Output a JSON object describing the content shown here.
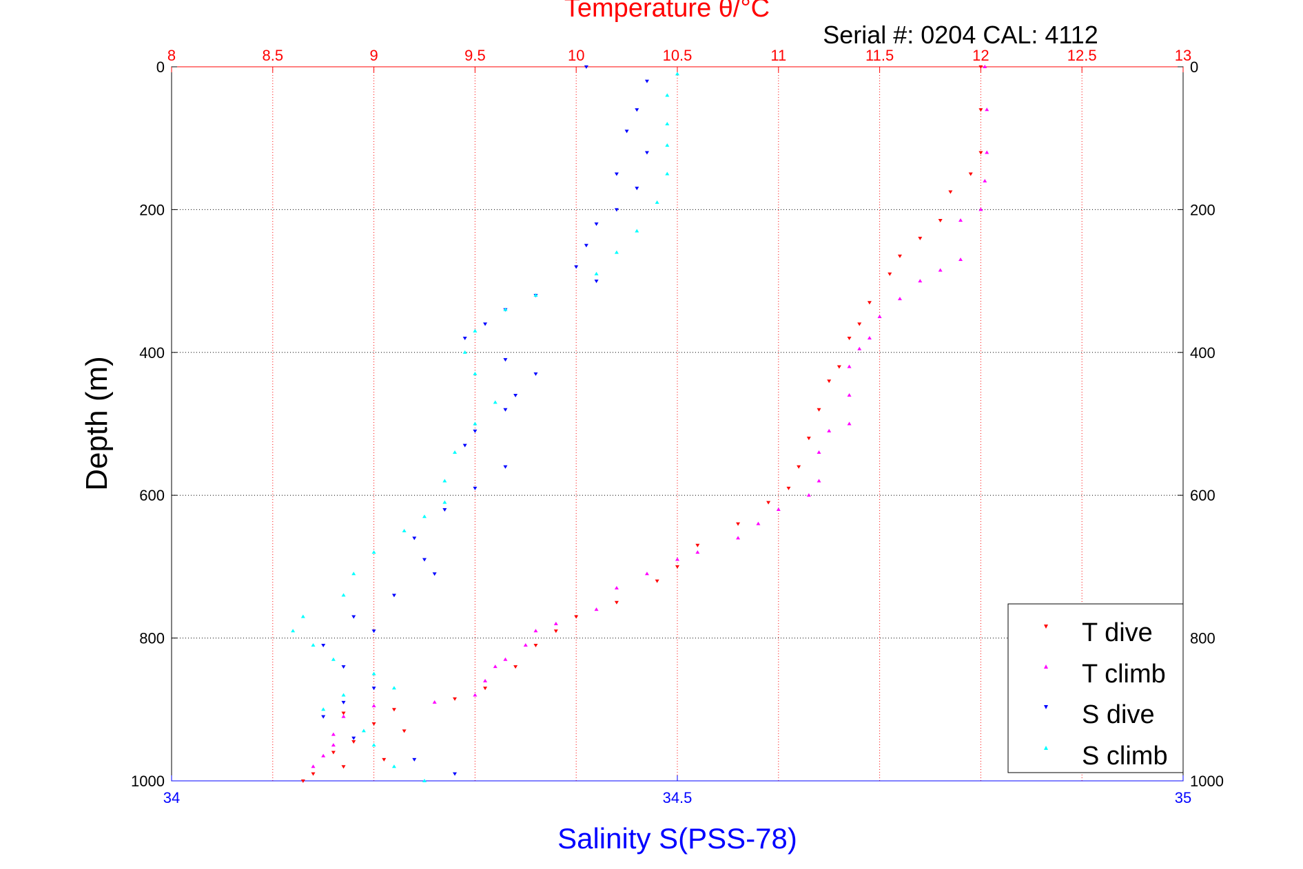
{
  "chart_data": {
    "type": "scatter",
    "title": "Temperature θ/°C",
    "subtitle": "Serial #: 0204  CAL: 4112",
    "xlabel_bottom": "Salinity S(PSS-78)",
    "ylabel": "Depth (m)",
    "y_reversed": true,
    "ylim": [
      0,
      1000
    ],
    "y_ticks": [
      "0",
      "200",
      "400",
      "600",
      "800",
      "1000"
    ],
    "x_top": {
      "label": "Temperature θ/°C",
      "lim": [
        8,
        13
      ],
      "ticks": [
        "8",
        "8.5",
        "9",
        "9.5",
        "10",
        "10.5",
        "11",
        "11.5",
        "12",
        "12.5",
        "13"
      ]
    },
    "x_bottom": {
      "label": "Salinity S(PSS-78)",
      "lim": [
        34,
        35
      ],
      "ticks": [
        "34",
        "34.5",
        "35"
      ]
    },
    "grid": true,
    "legend_position": "bottom-right",
    "series": [
      {
        "name": "T dive",
        "axis": "temperature",
        "color": "#ff0000",
        "marker": "triangle-down",
        "points": [
          [
            12.0,
            0
          ],
          [
            12.0,
            60
          ],
          [
            12.0,
            120
          ],
          [
            11.95,
            150
          ],
          [
            11.85,
            175
          ],
          [
            11.8,
            215
          ],
          [
            11.7,
            240
          ],
          [
            11.6,
            265
          ],
          [
            11.55,
            290
          ],
          [
            11.45,
            330
          ],
          [
            11.4,
            360
          ],
          [
            11.35,
            380
          ],
          [
            11.3,
            420
          ],
          [
            11.25,
            440
          ],
          [
            11.2,
            480
          ],
          [
            11.15,
            520
          ],
          [
            11.1,
            560
          ],
          [
            11.05,
            590
          ],
          [
            10.95,
            610
          ],
          [
            10.8,
            640
          ],
          [
            10.6,
            670
          ],
          [
            10.5,
            700
          ],
          [
            10.4,
            720
          ],
          [
            10.2,
            750
          ],
          [
            10.0,
            770
          ],
          [
            9.9,
            790
          ],
          [
            9.8,
            810
          ],
          [
            9.7,
            840
          ],
          [
            9.55,
            870
          ],
          [
            9.4,
            885
          ],
          [
            9.1,
            900
          ],
          [
            8.85,
            905
          ],
          [
            9.0,
            920
          ],
          [
            9.15,
            930
          ],
          [
            8.9,
            945
          ],
          [
            8.8,
            960
          ],
          [
            9.05,
            970
          ],
          [
            8.85,
            980
          ],
          [
            8.7,
            990
          ],
          [
            8.65,
            1000
          ]
        ]
      },
      {
        "name": "T climb",
        "axis": "temperature",
        "color": "#ff00ff",
        "marker": "triangle-up",
        "points": [
          [
            12.02,
            0
          ],
          [
            12.03,
            60
          ],
          [
            12.03,
            120
          ],
          [
            12.02,
            160
          ],
          [
            12.0,
            200
          ],
          [
            11.9,
            215
          ],
          [
            11.9,
            270
          ],
          [
            11.8,
            285
          ],
          [
            11.7,
            300
          ],
          [
            11.6,
            325
          ],
          [
            11.5,
            350
          ],
          [
            11.45,
            380
          ],
          [
            11.4,
            395
          ],
          [
            11.35,
            420
          ],
          [
            11.35,
            460
          ],
          [
            11.35,
            500
          ],
          [
            11.25,
            510
          ],
          [
            11.2,
            540
          ],
          [
            11.2,
            580
          ],
          [
            11.15,
            600
          ],
          [
            11.0,
            620
          ],
          [
            10.9,
            640
          ],
          [
            10.8,
            660
          ],
          [
            10.6,
            680
          ],
          [
            10.5,
            690
          ],
          [
            10.35,
            710
          ],
          [
            10.2,
            730
          ],
          [
            10.1,
            760
          ],
          [
            9.9,
            780
          ],
          [
            9.8,
            790
          ],
          [
            9.75,
            810
          ],
          [
            9.65,
            830
          ],
          [
            9.6,
            840
          ],
          [
            9.55,
            860
          ],
          [
            9.5,
            880
          ],
          [
            9.3,
            890
          ],
          [
            9.0,
            895
          ],
          [
            8.85,
            910
          ],
          [
            8.8,
            935
          ],
          [
            8.8,
            950
          ],
          [
            8.75,
            965
          ],
          [
            8.7,
            980
          ]
        ]
      },
      {
        "name": "S dive",
        "axis": "salinity",
        "color": "#0000ff",
        "marker": "triangle-down",
        "points": [
          [
            34.41,
            0
          ],
          [
            34.47,
            20
          ],
          [
            34.46,
            60
          ],
          [
            34.45,
            90
          ],
          [
            34.47,
            120
          ],
          [
            34.44,
            150
          ],
          [
            34.46,
            170
          ],
          [
            34.44,
            200
          ],
          [
            34.42,
            220
          ],
          [
            34.41,
            250
          ],
          [
            34.4,
            280
          ],
          [
            34.42,
            300
          ],
          [
            34.36,
            320
          ],
          [
            34.33,
            340
          ],
          [
            34.31,
            360
          ],
          [
            34.29,
            380
          ],
          [
            34.33,
            410
          ],
          [
            34.36,
            430
          ],
          [
            34.34,
            460
          ],
          [
            34.33,
            480
          ],
          [
            34.3,
            510
          ],
          [
            34.29,
            530
          ],
          [
            34.33,
            560
          ],
          [
            34.3,
            590
          ],
          [
            34.27,
            620
          ],
          [
            34.24,
            660
          ],
          [
            34.25,
            690
          ],
          [
            34.26,
            710
          ],
          [
            34.22,
            740
          ],
          [
            34.18,
            770
          ],
          [
            34.2,
            790
          ],
          [
            34.15,
            810
          ],
          [
            34.17,
            840
          ],
          [
            34.2,
            870
          ],
          [
            34.17,
            890
          ],
          [
            34.15,
            910
          ],
          [
            34.18,
            940
          ],
          [
            34.24,
            970
          ],
          [
            34.28,
            990
          ]
        ]
      },
      {
        "name": "S climb",
        "axis": "salinity",
        "color": "#00ffff",
        "marker": "triangle-up",
        "points": [
          [
            34.5,
            10
          ],
          [
            34.49,
            40
          ],
          [
            34.49,
            80
          ],
          [
            34.49,
            110
          ],
          [
            34.49,
            150
          ],
          [
            34.48,
            190
          ],
          [
            34.46,
            230
          ],
          [
            34.44,
            260
          ],
          [
            34.42,
            290
          ],
          [
            34.36,
            320
          ],
          [
            34.33,
            340
          ],
          [
            34.3,
            370
          ],
          [
            34.29,
            400
          ],
          [
            34.3,
            430
          ],
          [
            34.32,
            470
          ],
          [
            34.3,
            500
          ],
          [
            34.28,
            540
          ],
          [
            34.27,
            580
          ],
          [
            34.27,
            610
          ],
          [
            34.25,
            630
          ],
          [
            34.23,
            650
          ],
          [
            34.2,
            680
          ],
          [
            34.18,
            710
          ],
          [
            34.17,
            740
          ],
          [
            34.13,
            770
          ],
          [
            34.12,
            790
          ],
          [
            34.14,
            810
          ],
          [
            34.16,
            830
          ],
          [
            34.2,
            850
          ],
          [
            34.22,
            870
          ],
          [
            34.17,
            880
          ],
          [
            34.15,
            900
          ],
          [
            34.19,
            930
          ],
          [
            34.2,
            950
          ],
          [
            34.22,
            980
          ],
          [
            34.25,
            1000
          ]
        ]
      }
    ]
  },
  "legend": {
    "items": [
      {
        "label": "T dive"
      },
      {
        "label": "T climb"
      },
      {
        "label": "S dive"
      },
      {
        "label": "S climb"
      }
    ]
  }
}
